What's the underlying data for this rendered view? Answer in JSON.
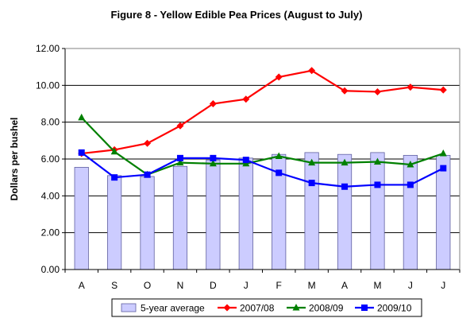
{
  "chart_data": {
    "type": "bar",
    "title": "Figure 8 - Yellow Edible Pea Prices (August to July)",
    "xlabel": "",
    "ylabel": "Dollars per bushel",
    "categories": [
      "A",
      "S",
      "O",
      "N",
      "D",
      "J",
      "F",
      "M",
      "A",
      "M",
      "J",
      "J"
    ],
    "ylim": [
      0,
      12
    ],
    "yticks": [
      "0.00",
      "2.00",
      "4.00",
      "6.00",
      "8.00",
      "10.00",
      "12.00"
    ],
    "ytick_values": [
      0,
      2,
      4,
      6,
      8,
      10,
      12
    ],
    "grid": true,
    "legend_position": "bottom",
    "bar_series": {
      "name": "5-year average",
      "color": "#ccccff",
      "values": [
        5.55,
        5.1,
        5.05,
        5.6,
        5.95,
        6.05,
        6.25,
        6.35,
        6.25,
        6.35,
        6.2,
        6.2
      ]
    },
    "series": [
      {
        "name": "2007/08",
        "type": "line",
        "marker": "diamond",
        "color": "#ff0000",
        "values": [
          6.3,
          6.5,
          6.85,
          7.8,
          9.0,
          9.25,
          10.45,
          10.8,
          9.7,
          9.65,
          9.9,
          9.75
        ]
      },
      {
        "name": "2008/09",
        "type": "line",
        "marker": "triangle",
        "color": "#008000",
        "values": [
          8.25,
          6.4,
          5.15,
          5.8,
          5.75,
          5.75,
          6.15,
          5.8,
          5.8,
          5.85,
          5.7,
          6.3
        ]
      },
      {
        "name": "2009/10",
        "type": "line",
        "marker": "square",
        "color": "#0000ff",
        "values": [
          6.35,
          5.0,
          5.15,
          6.05,
          6.05,
          5.95,
          5.25,
          4.7,
          4.5,
          4.6,
          4.6,
          5.5
        ]
      }
    ]
  }
}
